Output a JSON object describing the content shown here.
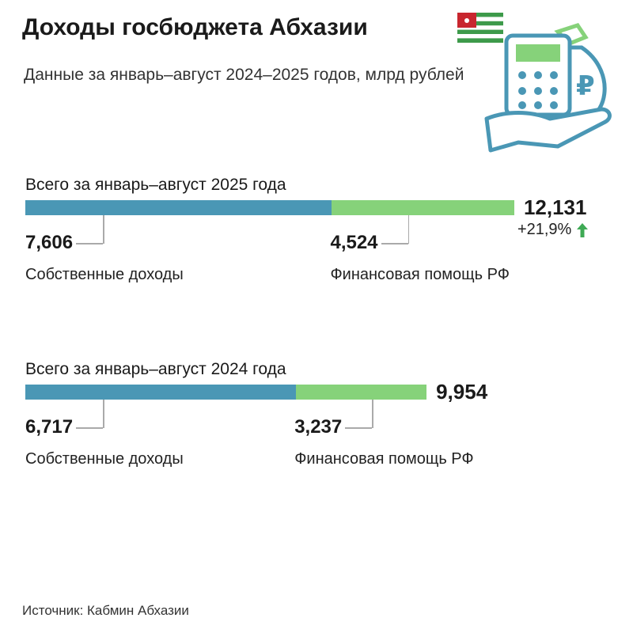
{
  "header": {
    "title": "Доходы госбюджета Абхазии",
    "subtitle": "Данные за январь–август 2024–2025 годов, млрд рублей"
  },
  "chart_data": [
    {
      "type": "stacked-bar",
      "title": "Всего за январь–август 2025 года",
      "categories": [
        "Собственные доходы",
        "Финансовая помощь РФ"
      ],
      "values": [
        7.606,
        4.524
      ],
      "value_labels": [
        "7,606",
        "4,524"
      ],
      "colors": [
        "#4a97b5",
        "#86d27a"
      ],
      "total": {
        "value": 12.131,
        "label": "12,131"
      },
      "change": {
        "value": 21.9,
        "label": "+21,9%"
      }
    },
    {
      "type": "stacked-bar",
      "title": "Всего за январь–август 2024 года",
      "categories": [
        "Собственные доходы",
        "Финансовая помощь РФ"
      ],
      "values": [
        6.717,
        3.237
      ],
      "value_labels": [
        "6,717",
        "3,237"
      ],
      "colors": [
        "#4a97b5",
        "#86d27a"
      ],
      "total": {
        "value": 9.954,
        "label": "9,954"
      }
    }
  ],
  "footer": {
    "source": "Источник: Кабмин Абхазии"
  }
}
